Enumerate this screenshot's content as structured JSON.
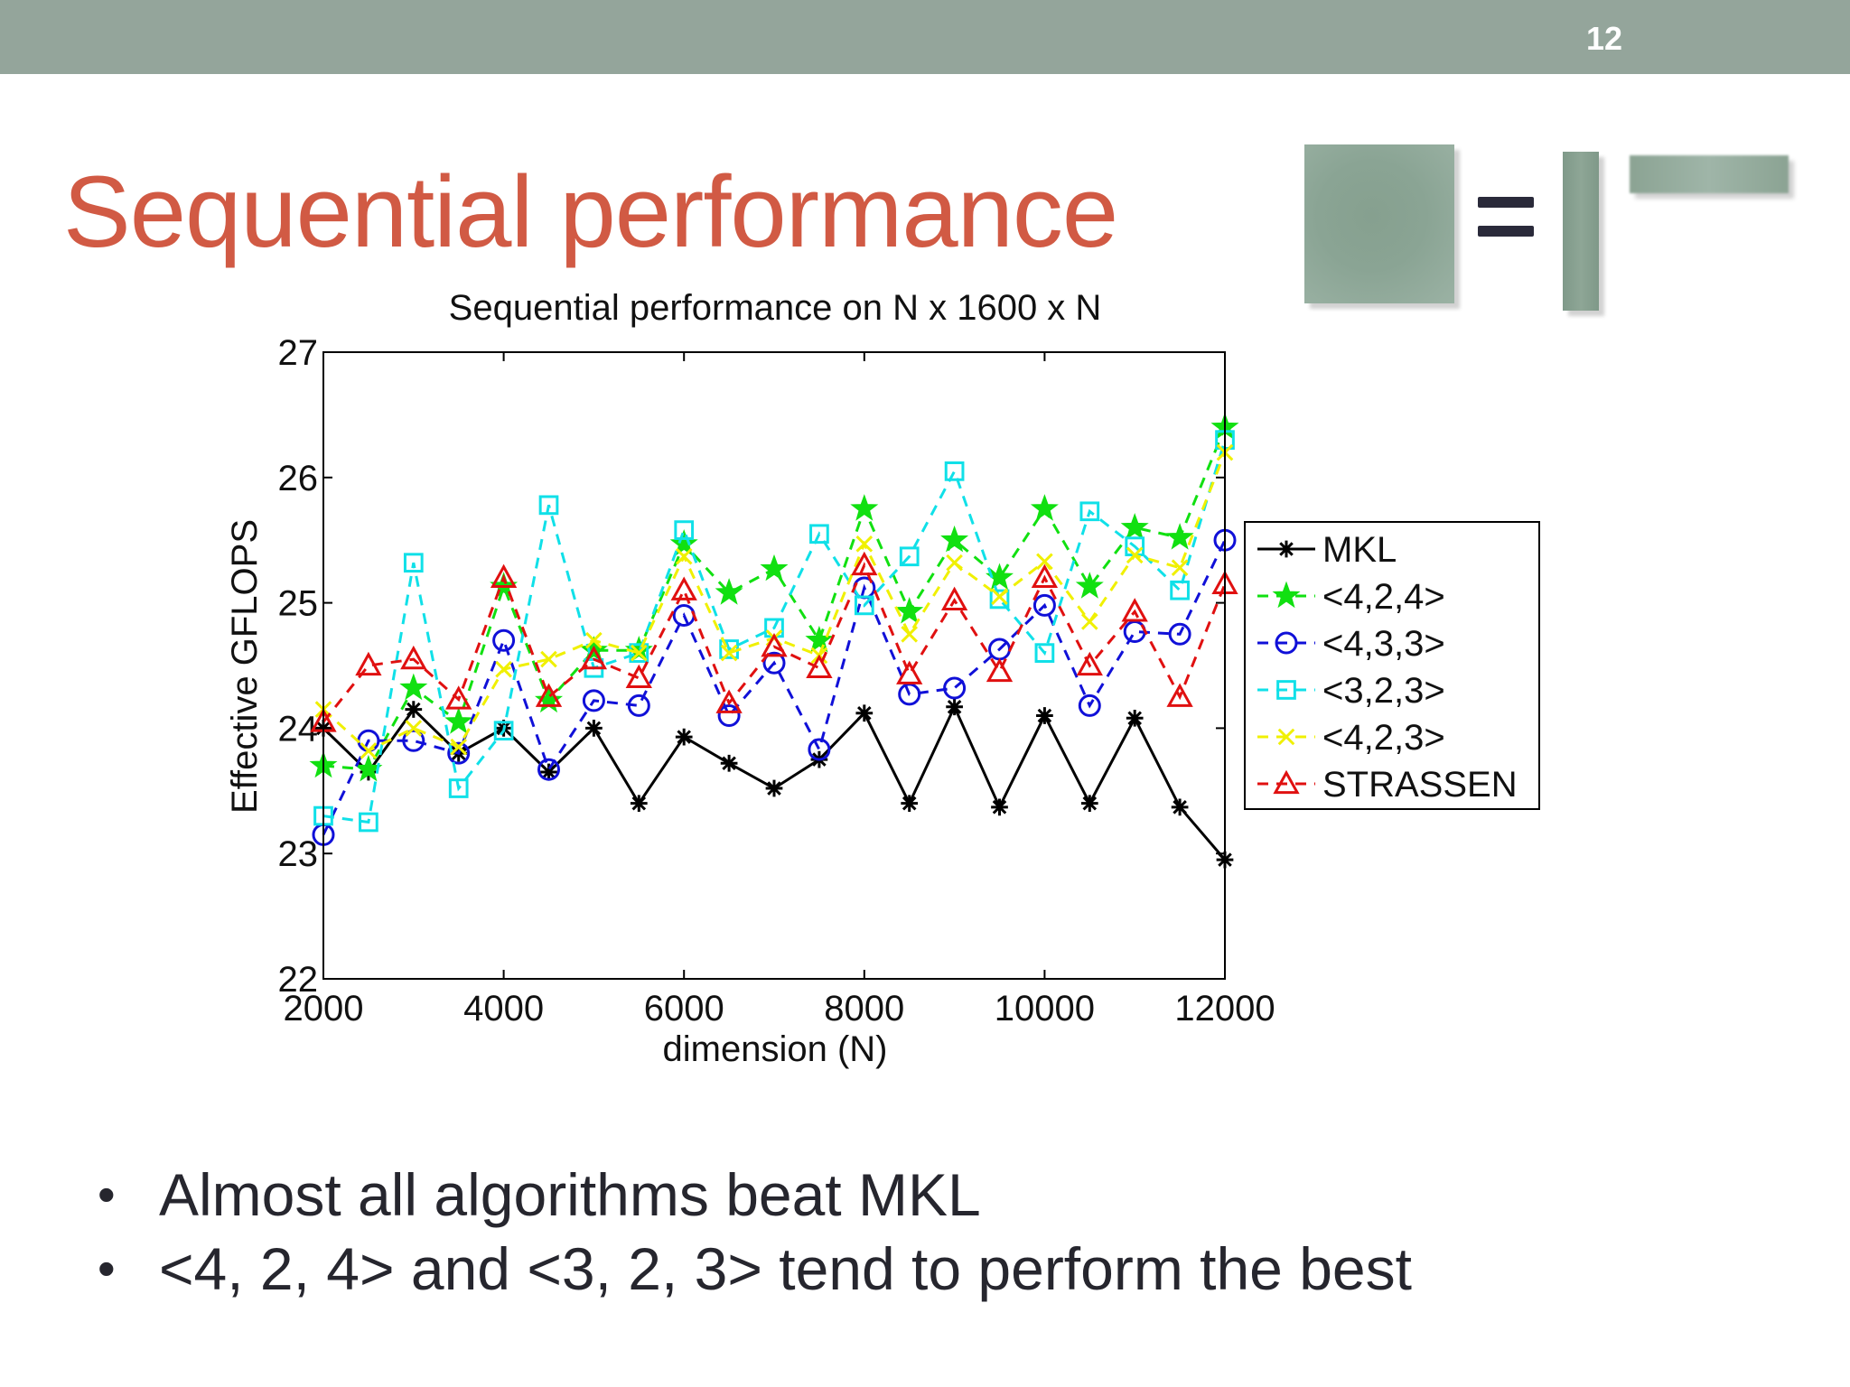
{
  "slide": {
    "number": "12",
    "title": "Sequential performance",
    "bullets": [
      "Almost all algorithms beat MKL",
      "<4, 2, 4> and <3, 2, 3> tend to perform the best"
    ]
  },
  "chart_data": {
    "type": "line",
    "title": "Sequential performance on N x 1600 x N",
    "xlabel": "dimension (N)",
    "ylabel": "Effective GFLOPS",
    "xlim": [
      2000,
      12000
    ],
    "ylim": [
      22,
      27
    ],
    "x_ticks": [
      "2000",
      "4000",
      "6000",
      "8000",
      "10000",
      "12000"
    ],
    "y_ticks": [
      "22",
      "23",
      "24",
      "25",
      "26",
      "27"
    ],
    "legend_position": "right",
    "grid": false,
    "x": [
      2000,
      2500,
      3000,
      3500,
      4000,
      4500,
      5000,
      5500,
      6000,
      6500,
      7000,
      7500,
      8000,
      8500,
      9000,
      9500,
      10000,
      10500,
      11000,
      11500,
      12000
    ],
    "series": [
      {
        "name": "MKL",
        "color": "#000000",
        "marker": "asterisk",
        "line": "solid",
        "values": [
          24.0,
          23.65,
          24.15,
          23.8,
          24.0,
          23.65,
          24.0,
          23.4,
          23.93,
          23.72,
          23.52,
          23.75,
          24.12,
          23.4,
          24.17,
          23.37,
          24.1,
          23.4,
          24.08,
          23.37,
          22.95
        ]
      },
      {
        "name": "<4,2,4>",
        "color": "#11e011",
        "marker": "star",
        "line": "dashed",
        "values": [
          23.7,
          23.67,
          24.32,
          24.05,
          25.13,
          24.22,
          24.62,
          24.62,
          25.47,
          25.08,
          25.27,
          24.7,
          25.75,
          24.93,
          25.5,
          25.2,
          25.75,
          25.13,
          25.6,
          25.52,
          26.4
        ]
      },
      {
        "name": "<4,3,3>",
        "color": "#1010d8",
        "marker": "circle",
        "line": "dashed",
        "values": [
          23.15,
          23.9,
          23.9,
          23.8,
          24.7,
          23.67,
          24.22,
          24.18,
          24.9,
          24.1,
          24.52,
          23.83,
          25.12,
          24.27,
          24.32,
          24.63,
          24.98,
          24.18,
          24.77,
          24.75,
          25.5
        ]
      },
      {
        "name": "<3,2,3>",
        "color": "#10e0e8",
        "marker": "square",
        "line": "dashed",
        "values": [
          23.3,
          23.25,
          25.32,
          23.52,
          23.98,
          25.78,
          24.48,
          24.6,
          25.58,
          24.63,
          24.8,
          25.55,
          24.98,
          25.37,
          26.05,
          25.03,
          24.6,
          25.73,
          25.45,
          25.1,
          26.3
        ]
      },
      {
        "name": "<4,2,3>",
        "color": "#f0f000",
        "marker": "x",
        "line": "dashed",
        "values": [
          24.15,
          23.82,
          24.0,
          23.85,
          24.47,
          24.55,
          24.7,
          24.6,
          25.37,
          24.6,
          24.72,
          24.58,
          25.47,
          24.75,
          25.32,
          25.05,
          25.33,
          24.85,
          25.38,
          25.28,
          26.2
        ]
      },
      {
        "name": "STRASSEN",
        "color": "#e01010",
        "marker": "triangle",
        "line": "dashed",
        "values": [
          24.05,
          24.5,
          24.55,
          24.23,
          25.2,
          24.25,
          24.55,
          24.4,
          25.1,
          24.2,
          24.65,
          24.48,
          25.3,
          24.43,
          25.02,
          24.45,
          25.2,
          24.5,
          24.93,
          24.25,
          25.15
        ]
      }
    ]
  }
}
